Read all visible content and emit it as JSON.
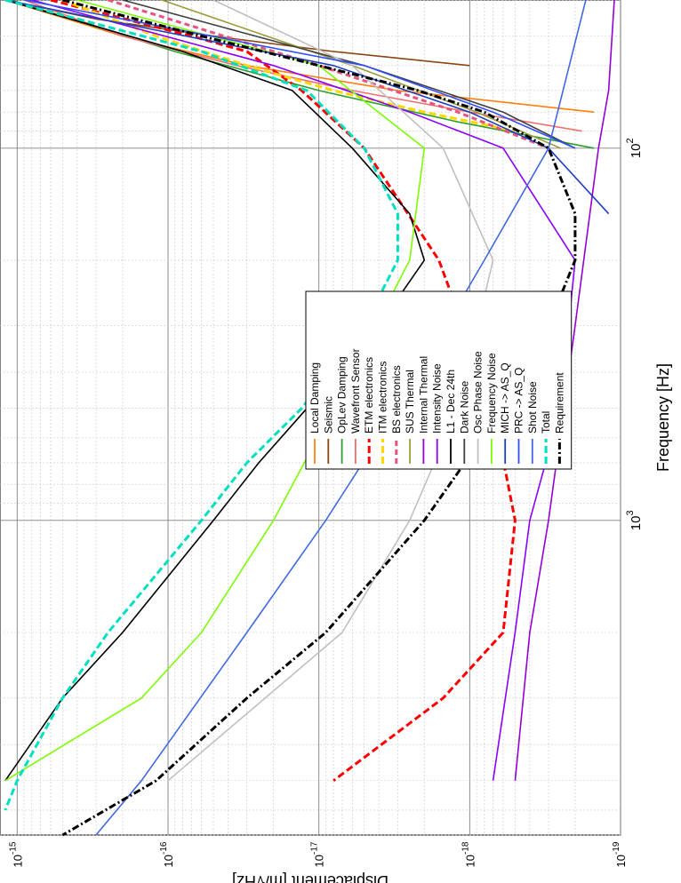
{
  "chart_data": {
    "type": "line",
    "orientation": "rotated-90-clockwise",
    "xlabel": "Frequency [Hz]",
    "ylabel": "Displacement [m/√Hz]",
    "x_scale": "log",
    "y_scale": "log",
    "xlim": [
      40,
      7000
    ],
    "ylim": [
      1e-19,
      1.3e-15
    ],
    "x_ticks": [
      {
        "value": 100,
        "label": "10",
        "exp": "2"
      },
      {
        "value": 1000,
        "label": "10",
        "exp": "3"
      }
    ],
    "y_ticks": [
      {
        "value": 1e-15,
        "label": "10",
        "exp": "-15"
      },
      {
        "value": 1e-16,
        "label": "10",
        "exp": "-16"
      },
      {
        "value": 1e-17,
        "label": "10",
        "exp": "-17"
      },
      {
        "value": 1e-18,
        "label": "10",
        "exp": "-18"
      },
      {
        "value": 1e-19,
        "label": "10",
        "exp": "-19"
      }
    ],
    "grid": true,
    "legend_position": "top-right",
    "series": [
      {
        "name": "Local Damping",
        "color": "#ff7f0e",
        "dash": "",
        "x": [
          40,
          50,
          60,
          70,
          80
        ],
        "y": [
          1.2e-15,
          2e-16,
          3e-17,
          3e-18,
          1.5e-19
        ]
      },
      {
        "name": "Seismic",
        "color": "#8b4513",
        "dash": "",
        "x": [
          40,
          45,
          50,
          55,
          60
        ],
        "y": [
          1.2e-15,
          3e-16,
          5e-17,
          8e-18,
          1e-18
        ]
      },
      {
        "name": "OpLev Damping",
        "color": "#2ca02c",
        "dash": "",
        "x": [
          40,
          55,
          70,
          85,
          100
        ],
        "y": [
          1.1e-15,
          9e-17,
          1e-17,
          1.2e-18,
          1.5e-19
        ]
      },
      {
        "name": "Wavefront Sensor",
        "color": "#f07070",
        "dash": "",
        "x": [
          40,
          50,
          60,
          70,
          80,
          90
        ],
        "y": [
          9e-16,
          2e-16,
          3.5e-17,
          6e-18,
          1e-18,
          1.8e-19
        ]
      },
      {
        "name": "ETM electronics",
        "color": "#ff0000",
        "dash": "8,4",
        "x": [
          40,
          50,
          55,
          70,
          100,
          200,
          500,
          1000,
          2000,
          3000,
          5000
        ],
        "y": [
          6e-16,
          7e-17,
          3e-17,
          1.3e-17,
          5e-18,
          1.6e-18,
          7e-19,
          5e-19,
          6e-19,
          1.5e-18,
          8e-18
        ]
      },
      {
        "name": "ITM electronics",
        "color": "#ffd700",
        "dash": "8,4",
        "x": [
          40,
          50,
          60,
          70,
          80,
          90
        ],
        "y": [
          5e-16,
          1.2e-16,
          3e-17,
          8e-18,
          2e-18,
          5e-19
        ]
      },
      {
        "name": "BS electronics",
        "color": "#e75480",
        "dash": "6,4",
        "x": [
          40,
          60,
          80,
          100
        ],
        "y": [
          2.5e-16,
          1e-17,
          1.2e-18,
          3e-19
        ]
      },
      {
        "name": "SUS Thermal",
        "color": "#9c9c3a",
        "dash": "",
        "x": [
          40,
          60,
          80,
          100
        ],
        "y": [
          1.1e-16,
          6e-18,
          9e-19,
          2.5e-19
        ]
      },
      {
        "name": "Internal Thermal",
        "color": "#9400d3",
        "dash": "",
        "x": [
          40,
          70,
          100,
          300,
          1000,
          2000,
          5000
        ],
        "y": [
          1.1e-19,
          1.2e-19,
          1.4e-19,
          2e-19,
          3e-19,
          4e-19,
          5e-19
        ]
      },
      {
        "name": "Intensity Noise",
        "color": "#8b00ff",
        "dash": "",
        "x": [
          40,
          60,
          80,
          100,
          200,
          500,
          1000,
          2000,
          5000
        ],
        "y": [
          8e-16,
          2e-17,
          2.5e-18,
          6e-19,
          2e-19,
          2.5e-19,
          4e-19,
          5e-19,
          7e-19
        ]
      },
      {
        "name": "L1 - Dec 24th",
        "color": "#000000",
        "dash": "",
        "x": [
          40,
          55,
          70,
          100,
          150,
          200,
          300,
          500,
          700,
          1000,
          2000,
          3000,
          5000
        ],
        "y": [
          1.2e-15,
          8e-17,
          1.5e-17,
          6e-18,
          2.5e-18,
          2e-18,
          4e-18,
          1.2e-17,
          2.5e-17,
          5e-17,
          2e-16,
          5e-16,
          1.2e-15
        ]
      },
      {
        "name": "Dark Noise",
        "color": "#404040",
        "dash": "",
        "x": [
          40,
          60,
          80,
          100
        ],
        "y": [
          2e-16,
          5e-18,
          6e-19,
          2e-19
        ]
      },
      {
        "name": "Osc Phase Noise",
        "color": "#c0c0c0",
        "dash": "",
        "x": [
          40,
          60,
          100,
          200,
          500,
          1000,
          2000,
          5000
        ],
        "y": [
          5e-17,
          6e-18,
          1.5e-18,
          7e-19,
          1.2e-18,
          2.5e-18,
          7e-18,
          1e-16
        ]
      },
      {
        "name": "Frequency Noise",
        "color": "#7cfc00",
        "dash": "",
        "x": [
          40,
          60,
          100,
          200,
          500,
          1000,
          2000,
          3000,
          5000
        ],
        "y": [
          4e-16,
          1e-17,
          2e-18,
          2.5e-18,
          8e-18,
          2e-17,
          6e-17,
          1.5e-16,
          1.2e-15
        ]
      },
      {
        "name": "MICH -> AS_Q",
        "color": "#1f3fbf",
        "dash": "",
        "x": [
          40,
          60,
          80,
          100,
          150
        ],
        "y": [
          1.2e-15,
          8e-18,
          1e-18,
          3e-19,
          1.2e-19
        ]
      },
      {
        "name": "PRC -> AS_Q",
        "color": "#3050ff",
        "dash": "",
        "x": [
          40,
          60,
          80,
          100
        ],
        "y": [
          9e-16,
          5e-18,
          7e-19,
          2e-19
        ]
      },
      {
        "name": "Shot Noise",
        "color": "#4169e1",
        "dash": "",
        "x": [
          40,
          100,
          200,
          500,
          1000,
          2000,
          5000,
          7000
        ],
        "y": [
          1.7e-19,
          3e-19,
          8e-19,
          3e-18,
          9e-18,
          3e-17,
          1.5e-16,
          3e-16
        ]
      },
      {
        "name": "Total",
        "color": "#00e0c0",
        "dash": "8,4",
        "x": [
          40,
          55,
          70,
          100,
          150,
          200,
          300,
          500,
          700,
          1000,
          2000,
          3000,
          5000,
          6000
        ],
        "y": [
          1.2e-15,
          6e-17,
          1.2e-17,
          5e-18,
          3e-18,
          3e-18,
          5e-18,
          1.3e-17,
          3e-17,
          6e-17,
          2.5e-16,
          5e-16,
          1e-15,
          1.2e-15
        ]
      },
      {
        "name": "Requirement",
        "color": "#000000",
        "dash": "8,3,2,3",
        "x": [
          40,
          50,
          60,
          70,
          80,
          100,
          150,
          200,
          300,
          500,
          1000,
          2000,
          3000,
          5000,
          7000
        ],
        "y": [
          5e-16,
          6e-17,
          1e-17,
          2.2e-18,
          8e-19,
          3e-19,
          2e-19,
          2e-19,
          3e-19,
          6e-19,
          2e-18,
          9e-18,
          3e-17,
          1.2e-16,
          5e-16
        ]
      }
    ]
  }
}
